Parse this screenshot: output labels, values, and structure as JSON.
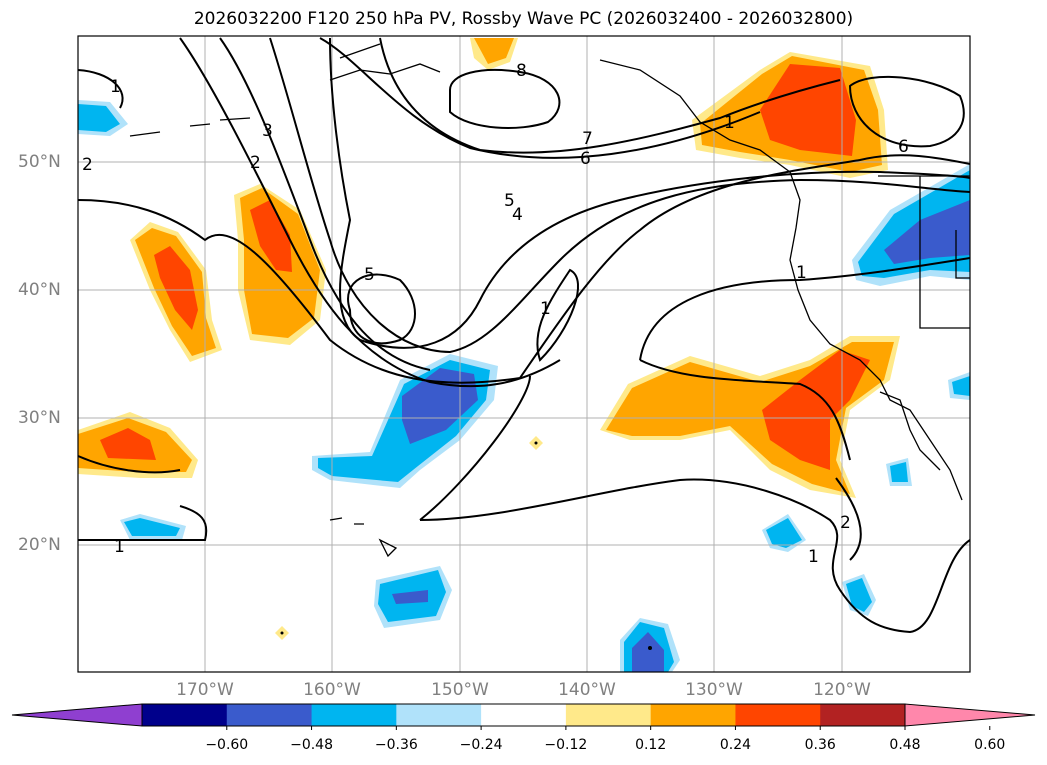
{
  "title": "2026032200 F120 250 hPa PV, Rossby Wave PC (2026032400 - 2026032800)",
  "map": {
    "lon_range": [
      -180,
      -110
    ],
    "lat_range": [
      10,
      60
    ],
    "lat_labels": [
      {
        "lat": 50,
        "text": "50°N"
      },
      {
        "lat": 40,
        "text": "40°N"
      },
      {
        "lat": 30,
        "text": "30°N"
      },
      {
        "lat": 20,
        "text": "20°N"
      }
    ],
    "lon_labels": [
      {
        "lon": -170,
        "text": "170°W"
      },
      {
        "lon": -160,
        "text": "160°W"
      },
      {
        "lon": -150,
        "text": "150°W"
      },
      {
        "lon": -140,
        "text": "140°W"
      },
      {
        "lon": -130,
        "text": "130°W"
      },
      {
        "lon": -120,
        "text": "120°W"
      }
    ],
    "contour_labels": [
      "1",
      "2",
      "3",
      "2",
      "5",
      "4",
      "5",
      "6",
      "7",
      "8",
      "1",
      "6",
      "1",
      "1",
      "2",
      "1",
      "1"
    ]
  },
  "colorbar": {
    "colors": [
      "#8f3fd0",
      "#00008b",
      "#3a5bcc",
      "#00b5f0",
      "#b0e2fa",
      "#ffffff",
      "#ffe98a",
      "#ffa500",
      "#ff4500",
      "#b22222",
      "#ff87ab"
    ],
    "ticks": [
      "−0.60",
      "−0.48",
      "−0.36",
      "−0.24",
      "−0.12",
      "0.12",
      "0.24",
      "0.36",
      "0.48",
      "0.60"
    ]
  }
}
